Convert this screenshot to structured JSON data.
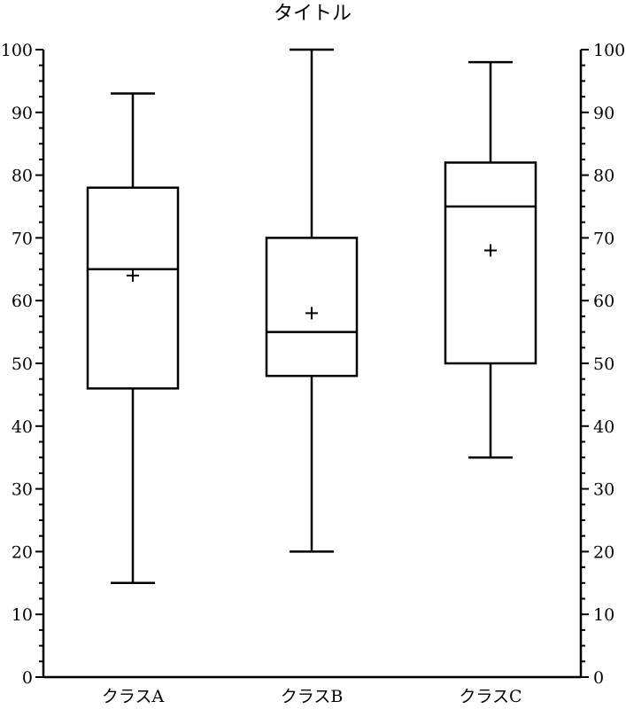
{
  "chart_data": {
    "type": "box",
    "title": "タイトル",
    "xlabel": "",
    "ylabel": "",
    "ylim": [
      0,
      100
    ],
    "major_ticks": [
      0,
      10,
      20,
      30,
      40,
      50,
      60,
      70,
      80,
      90,
      100
    ],
    "minor_step": 2.5,
    "secondary_y_axis": true,
    "grid": false,
    "categories": [
      "クラスA",
      "クラスB",
      "クラスC"
    ],
    "series": [
      {
        "category": "クラスA",
        "min": 15,
        "q1": 46,
        "median": 65,
        "q3": 78,
        "max": 93,
        "mean": 64
      },
      {
        "category": "クラスB",
        "min": 20,
        "q1": 48,
        "median": 55,
        "q3": 70,
        "max": 100,
        "mean": 58
      },
      {
        "category": "クラスC",
        "min": 35,
        "q1": 50,
        "median": 75,
        "q3": 82,
        "max": 98,
        "mean": 68
      }
    ]
  }
}
